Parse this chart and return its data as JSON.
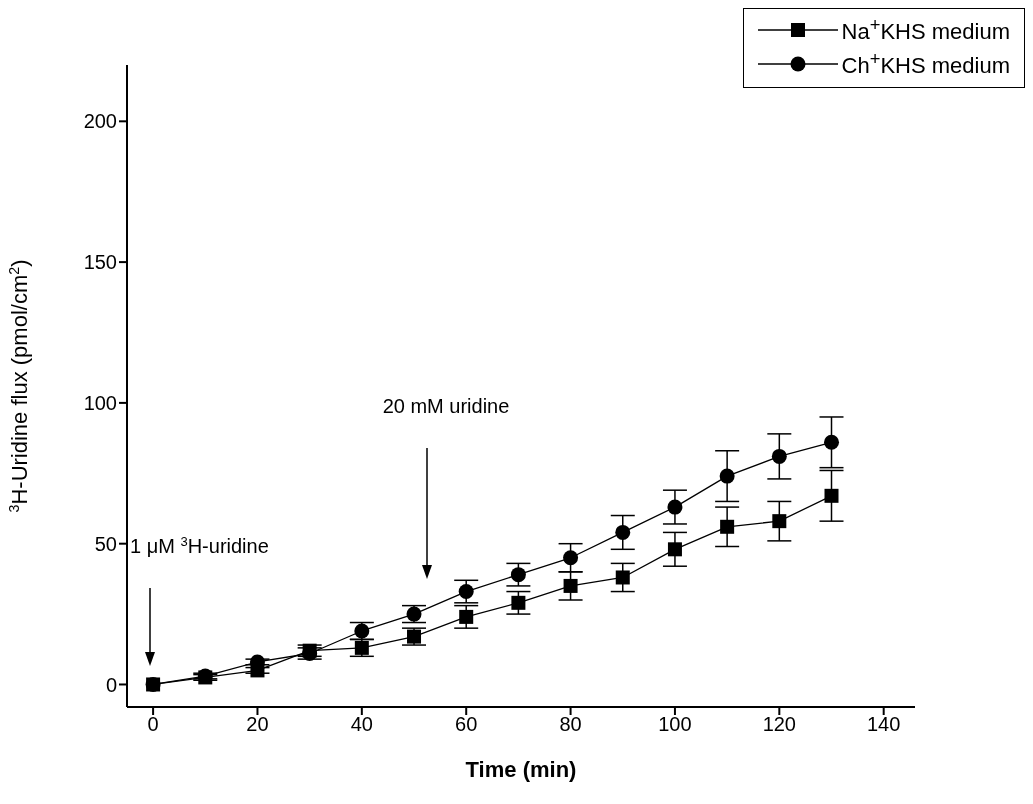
{
  "chart_data": {
    "type": "line",
    "xlabel": "Time (min)",
    "ylabel": "$^{3}$H-Uridine flux (pmol/cm$^{2}$)",
    "x": [
      0,
      10,
      20,
      30,
      40,
      50,
      60,
      70,
      80,
      90,
      100,
      110,
      120,
      130
    ],
    "series": [
      {
        "name": "Na$^{+}$KHS medium",
        "color": "#000000",
        "marker": "square",
        "values": [
          0,
          2.5,
          5,
          12,
          13,
          17,
          24,
          29,
          35,
          38,
          48,
          56,
          58,
          67
        ],
        "errors": [
          null,
          1,
          1,
          2,
          3,
          3,
          4,
          4,
          5,
          5,
          6,
          7,
          7,
          9
        ]
      },
      {
        "name": "Ch$^{+}$KHS medium",
        "color": "#000000",
        "marker": "circle",
        "values": [
          0,
          3,
          8,
          11,
          19,
          25,
          33,
          39,
          45,
          54,
          63,
          74,
          81,
          86
        ],
        "errors": [
          null,
          1,
          1,
          2,
          3,
          3,
          4,
          4,
          5,
          6,
          6,
          9,
          8,
          9
        ]
      }
    ],
    "xlim": [
      -5,
      146
    ],
    "xticks": [
      0,
      20,
      40,
      60,
      80,
      100,
      120,
      140
    ],
    "ylim": [
      -8,
      220
    ],
    "yticks": [
      0,
      50,
      100,
      150,
      200
    ],
    "annotations": [
      "1 μM $^{3}$H-uridine",
      "20 mM uridine"
    ],
    "grid": false,
    "legend": "top right",
    "line_style": "solid"
  }
}
